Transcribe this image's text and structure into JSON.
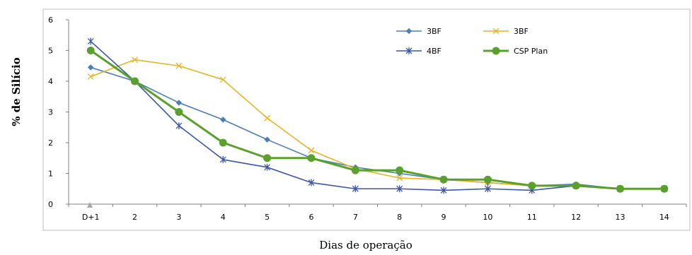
{
  "chart_data": {
    "type": "line",
    "xlabel": "Dias de operação",
    "ylabel": "% de Silício",
    "categories": [
      "D+1",
      "2",
      "3",
      "4",
      "5",
      "6",
      "7",
      "8",
      "9",
      "10",
      "11",
      "12",
      "13",
      "14"
    ],
    "yticks": [
      "0",
      "1",
      "2",
      "3",
      "4",
      "5",
      "6"
    ],
    "ylim": [
      0,
      6
    ],
    "grid": false,
    "legend_position": "top-right",
    "series": [
      {
        "name": "3BF",
        "color": "#4a7ebb",
        "marker": "diamond",
        "values": [
          4.45,
          4.0,
          3.3,
          2.75,
          2.1,
          1.5,
          1.2,
          1.0,
          0.8,
          0.7,
          0.6,
          0.65,
          0.5,
          0.5
        ]
      },
      {
        "name": "3BF",
        "color": "#e6b422",
        "marker": "x",
        "values": [
          4.15,
          4.7,
          4.5,
          4.05,
          2.8,
          1.75,
          1.15,
          0.85,
          0.8,
          0.7,
          0.6,
          0.6,
          0.5,
          0.5
        ]
      },
      {
        "name": "4BF",
        "color": "#3a56a8",
        "marker": "star",
        "values": [
          5.3,
          4.0,
          2.55,
          1.45,
          1.2,
          0.7,
          0.5,
          0.5,
          0.45,
          0.5,
          0.45,
          0.6,
          0.5,
          0.5
        ]
      },
      {
        "name": "CSP Plan",
        "color": "#5aa02c",
        "marker": "circle",
        "values": [
          5.0,
          4.0,
          3.0,
          2.0,
          1.5,
          1.5,
          1.1,
          1.1,
          0.8,
          0.8,
          0.6,
          0.6,
          0.5,
          0.5
        ]
      }
    ]
  }
}
